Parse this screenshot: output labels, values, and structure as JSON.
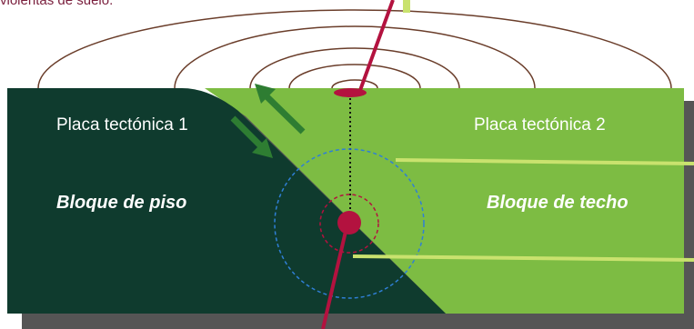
{
  "caption": "violentas de suelo.",
  "plates": {
    "plate_1_label": "Placa tectónica 1",
    "plate_2_label": "Placa tectónica 2"
  },
  "blocks": {
    "footwall_label": "Bloque de piso",
    "hanging_wall_label": "Bloque de techo"
  },
  "colors": {
    "footwall": "#0f3b2e",
    "hanging_wall": "#7dbc43",
    "shadow": "#555555",
    "seismic_wave": "#6a3d2a",
    "arrow": "#2e7d32",
    "focus": "#b3123f",
    "epicenter": "#b3123f",
    "leader_line": "#c9e26e",
    "blue_ring": "#2f7fd6"
  }
}
